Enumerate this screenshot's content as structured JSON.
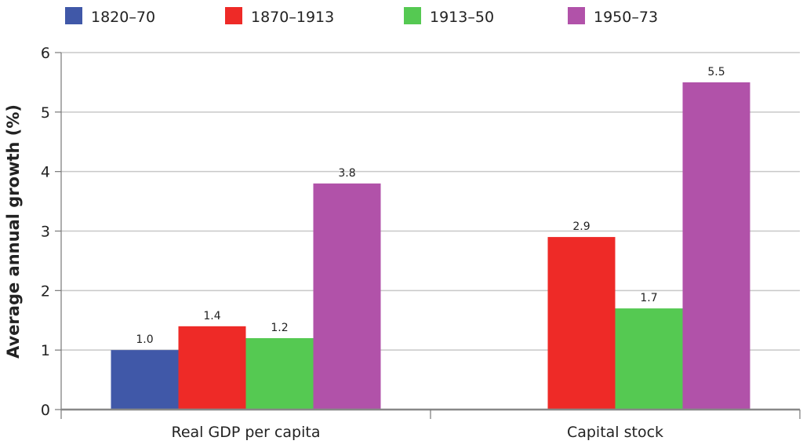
{
  "chart_data": {
    "type": "bar",
    "ylabel": "Average annual growth (%)",
    "xlabel": "",
    "ylim": [
      0,
      6
    ],
    "yticks": [
      0,
      1,
      2,
      3,
      4,
      5,
      6
    ],
    "grid": true,
    "legend_placement": "top",
    "categories": [
      "Real GDP per capita",
      "Capital stock"
    ],
    "series": [
      {
        "name": "1820–70",
        "color": "#4058a8",
        "values": [
          1.0,
          null
        ],
        "labels": [
          "1.0",
          ""
        ]
      },
      {
        "name": "1870–1913",
        "color": "#ee2a27",
        "values": [
          1.4,
          2.9
        ],
        "labels": [
          "1.4",
          "2.9"
        ]
      },
      {
        "name": "1913–50",
        "color": "#55c952",
        "values": [
          1.2,
          1.7
        ],
        "labels": [
          "1.2",
          "1.7"
        ]
      },
      {
        "name": "1950–73",
        "color": "#b152a9",
        "values": [
          3.8,
          5.5
        ],
        "labels": [
          "3.8",
          "5.5"
        ]
      }
    ]
  }
}
